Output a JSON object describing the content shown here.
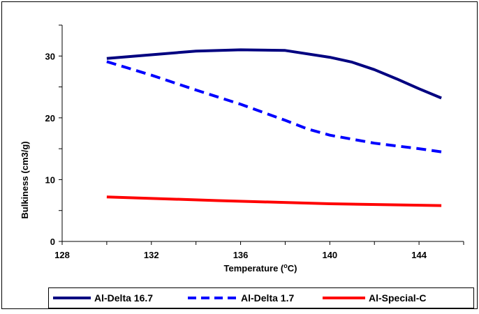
{
  "chart_data": {
    "type": "line",
    "xlabel": "Temperature (",
    "xlabel_sup": "o",
    "xlabel_suffix": "C)",
    "ylabel": "Bulkiness (cm3/g)",
    "xlim": [
      128,
      146
    ],
    "ylim": [
      0,
      35
    ],
    "x_ticks": [
      128,
      132,
      136,
      140,
      144
    ],
    "y_ticks": [
      0,
      10,
      20,
      30
    ],
    "grid": false,
    "legend_position": "bottom",
    "series": [
      {
        "name": "Al-Delta 16.7",
        "color": "#000080",
        "dash": "solid",
        "x": [
          130,
          132,
          134,
          136,
          138,
          140,
          141,
          142,
          143,
          144,
          145
        ],
        "y": [
          29.6,
          30.2,
          30.8,
          31.0,
          30.9,
          29.8,
          29.0,
          27.8,
          26.3,
          24.7,
          23.2
        ]
      },
      {
        "name": "Al-Delta 1.7",
        "color": "#0000FF",
        "dash": "dashed",
        "x": [
          130,
          132,
          134,
          136,
          138,
          139,
          140,
          142,
          144,
          145
        ],
        "y": [
          29.1,
          26.9,
          24.5,
          22.2,
          19.6,
          18.2,
          17.2,
          15.9,
          15.0,
          14.5
        ]
      },
      {
        "name": "Al-Special-C",
        "color": "#FF0000",
        "dash": "solid",
        "x": [
          130,
          135,
          140,
          145
        ],
        "y": [
          7.2,
          6.6,
          6.1,
          5.8
        ]
      }
    ]
  }
}
